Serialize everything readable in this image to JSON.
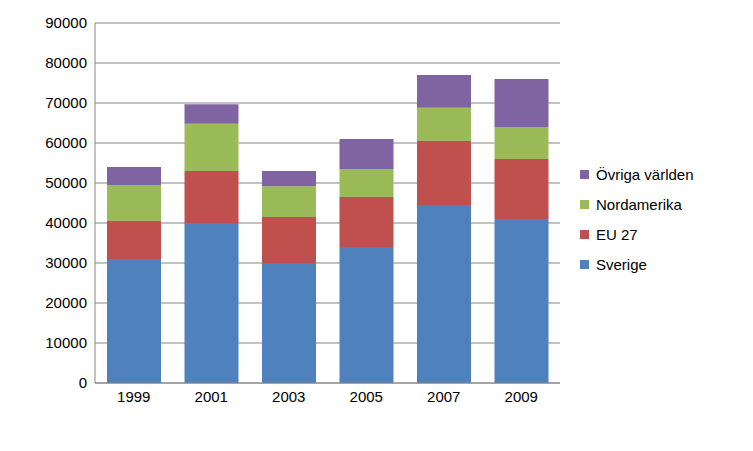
{
  "chart_data": {
    "type": "bar",
    "stacked": true,
    "grid": true,
    "legend": "right",
    "categories": [
      "1999",
      "2001",
      "2003",
      "2005",
      "2007",
      "2009"
    ],
    "ylim": [
      0,
      90000
    ],
    "yticks": [
      0,
      10000,
      20000,
      30000,
      40000,
      50000,
      60000,
      70000,
      80000,
      90000
    ],
    "series": [
      {
        "name": "Sverige",
        "color": "#4f81bd",
        "values": [
          31000,
          40000,
          30000,
          34000,
          44500,
          41000
        ]
      },
      {
        "name": "EU 27",
        "color": "#c0504d",
        "values": [
          9500,
          13000,
          11500,
          12500,
          16000,
          15000
        ]
      },
      {
        "name": "Nordamerika",
        "color": "#9bbb59",
        "values": [
          9000,
          11800,
          7700,
          7000,
          8300,
          8000
        ]
      },
      {
        "name": "Övriga världen",
        "color": "#8064a2",
        "values": [
          4500,
          4900,
          3800,
          7500,
          8200,
          12000
        ]
      }
    ]
  }
}
